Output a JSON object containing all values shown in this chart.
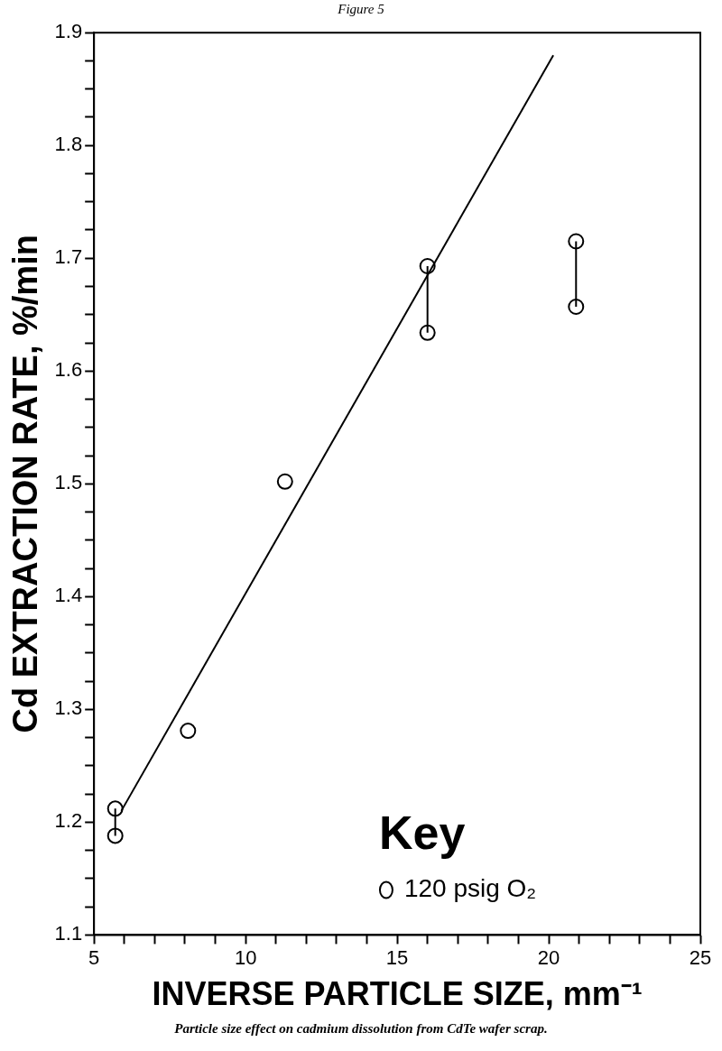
{
  "chart_data": {
    "type": "scatter",
    "title": "Figure 5",
    "xlabel": "INVERSE PARTICLE SIZE, mm⁻¹",
    "ylabel": "Cd EXTRACTION RATE, %/min",
    "legend_title": "Key",
    "legend": "bottom right",
    "annotations": [
      "Particle size effect on cadmium dissolution from CdTe wafer scrap."
    ],
    "xlim": [
      5,
      25
    ],
    "ylim": [
      1.1,
      1.9
    ],
    "xticks": [
      5,
      {
        "value": 6,
        "label": null
      },
      {
        "value": 7,
        "label": null
      },
      {
        "value": 8,
        "label": null
      },
      {
        "value": 9,
        "label": null
      },
      10,
      {
        "value": 11,
        "label": null
      },
      {
        "value": 12,
        "label": null
      },
      {
        "value": 13,
        "label": null
      },
      {
        "value": 14,
        "label": null
      },
      15,
      {
        "value": 16,
        "label": null
      },
      {
        "value": 17,
        "label": null
      },
      {
        "value": 18,
        "label": null
      },
      {
        "value": 19,
        "label": null
      },
      20,
      {
        "value": 21,
        "label": null
      },
      {
        "value": 22,
        "label": null
      },
      {
        "value": 23,
        "label": null
      },
      {
        "value": 24,
        "label": null
      },
      25
    ],
    "yticks": [
      {
        "value": 1.1,
        "label": "1.1"
      },
      {
        "value": 1.125,
        "label": null
      },
      {
        "value": 1.15,
        "label": null
      },
      {
        "value": 1.175,
        "label": null
      },
      {
        "value": 1.2,
        "label": "1.2"
      },
      {
        "value": 1.225,
        "label": null
      },
      {
        "value": 1.25,
        "label": null
      },
      {
        "value": 1.275,
        "label": null
      },
      {
        "value": 1.3,
        "label": "1.3"
      },
      {
        "value": 1.325,
        "label": null
      },
      {
        "value": 1.35,
        "label": null
      },
      {
        "value": 1.375,
        "label": null
      },
      {
        "value": 1.4,
        "label": "1.4"
      },
      {
        "value": 1.425,
        "label": null
      },
      {
        "value": 1.45,
        "label": null
      },
      {
        "value": 1.475,
        "label": null
      },
      {
        "value": 1.5,
        "label": "1.5"
      },
      {
        "value": 1.525,
        "label": null
      },
      {
        "value": 1.55,
        "label": null
      },
      {
        "value": 1.575,
        "label": null
      },
      {
        "value": 1.6,
        "label": "1.6"
      },
      {
        "value": 1.625,
        "label": null
      },
      {
        "value": 1.65,
        "label": null
      },
      {
        "value": 1.675,
        "label": null
      },
      {
        "value": 1.7,
        "label": "1.7"
      },
      {
        "value": 1.725,
        "label": null
      },
      {
        "value": 1.75,
        "label": null
      },
      {
        "value": 1.775,
        "label": null
      },
      {
        "value": 1.8,
        "label": "1.8"
      },
      {
        "value": 1.825,
        "label": null
      },
      {
        "value": 1.85,
        "label": null
      },
      {
        "value": 1.875,
        "label": null
      },
      {
        "value": 1.9,
        "label": "1.9"
      }
    ],
    "grid": false,
    "series": [
      {
        "type": "line",
        "color": "#000000",
        "marker": "none",
        "x": [
          5.9,
          20.15
        ],
        "values": [
          1.21,
          1.88
        ]
      },
      {
        "type": "line",
        "color": "#000000",
        "marker": "none",
        "x": [
          5.7,
          5.7
        ],
        "values": [
          1.188,
          1.212
        ]
      },
      {
        "type": "line",
        "color": "#000000",
        "marker": "none",
        "x": [
          16,
          16
        ],
        "values": [
          1.634,
          1.693
        ]
      },
      {
        "type": "line",
        "color": "#000000",
        "marker": "none",
        "x": [
          20.9,
          20.9
        ],
        "values": [
          1.657,
          1.715
        ]
      },
      {
        "type": "scatter",
        "name": "120 psig O₂",
        "color": "#000000",
        "marker": "circle",
        "x": [
          5.7,
          5.7,
          8.1,
          11.3,
          16,
          16,
          20.9,
          20.9
        ],
        "values": [
          1.212,
          1.188,
          1.281,
          1.502,
          1.693,
          1.634,
          1.715,
          1.657
        ]
      }
    ]
  }
}
